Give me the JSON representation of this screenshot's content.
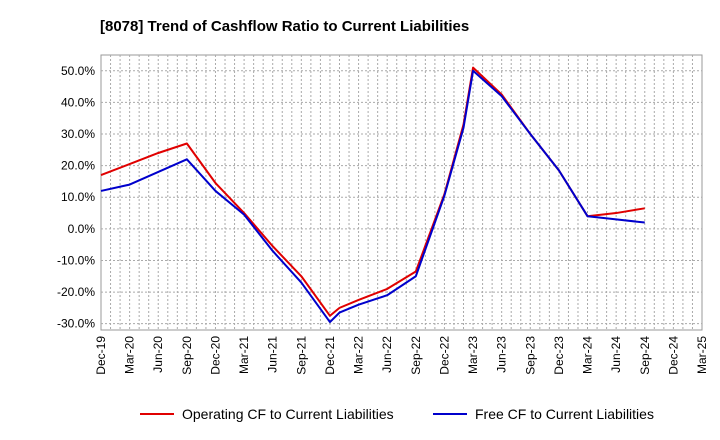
{
  "chart_data": {
    "type": "line",
    "title": "[8078]  Trend of Cashflow Ratio to Current Liabilities",
    "xlabel": "",
    "ylabel": "",
    "ylim": [
      -32,
      55
    ],
    "y_ticks": [
      "50.0%",
      "40.0%",
      "30.0%",
      "20.0%",
      "10.0%",
      "0.0%",
      "-10.0%",
      "-20.0%",
      "-30.0%"
    ],
    "y_tick_values": [
      50,
      40,
      30,
      20,
      10,
      0,
      -10,
      -20,
      -30
    ],
    "x_ticks": [
      "Dec-19",
      "Mar-20",
      "Jun-20",
      "Sep-20",
      "Dec-20",
      "Mar-21",
      "Jun-21",
      "Sep-21",
      "Dec-21",
      "Mar-22",
      "Jun-22",
      "Sep-22",
      "Dec-22",
      "Mar-23",
      "Jun-23",
      "Sep-23",
      "Dec-23",
      "Mar-24",
      "Jun-24",
      "Sep-24",
      "Dec-24",
      "Mar-25"
    ],
    "grid": true,
    "legend_position": "bottom",
    "series": [
      {
        "name": "Operating CF to Current Liabilities",
        "color": "#e00000",
        "points": [
          [
            "Dec-19",
            17
          ],
          [
            "Mar-20",
            20.5
          ],
          [
            "Jun-20",
            24
          ],
          [
            "Sep-20",
            27
          ],
          [
            "Dec-20",
            14.5
          ],
          [
            "Mar-21",
            5
          ],
          [
            "Jun-21",
            -5.5
          ],
          [
            "Sep-21",
            -15
          ],
          [
            "Dec-21",
            -27.5
          ],
          [
            "Jan-22",
            -25
          ],
          [
            "Mar-22",
            -22.5
          ],
          [
            "Jun-22",
            -19
          ],
          [
            "Sep-22",
            -13.5
          ],
          [
            "Dec-22",
            11
          ],
          [
            "Feb-23",
            33
          ],
          [
            "Mar-23",
            51
          ],
          [
            "Jun-23",
            42.5
          ],
          [
            "Sep-23",
            30
          ],
          [
            "Dec-23",
            18.5
          ],
          [
            "Mar-24",
            4
          ],
          [
            "Jun-24",
            5
          ],
          [
            "Sep-24",
            6.5
          ]
        ]
      },
      {
        "name": "Free CF to Current Liabilities",
        "color": "#0000cc",
        "points": [
          [
            "Dec-19",
            12
          ],
          [
            "Mar-20",
            14
          ],
          [
            "Jun-20",
            18
          ],
          [
            "Sep-20",
            22
          ],
          [
            "Dec-20",
            12
          ],
          [
            "Mar-21",
            4.5
          ],
          [
            "Jun-21",
            -7
          ],
          [
            "Sep-21",
            -17
          ],
          [
            "Dec-21",
            -29.5
          ],
          [
            "Jan-22",
            -26.5
          ],
          [
            "Mar-22",
            -24
          ],
          [
            "Jun-22",
            -21
          ],
          [
            "Sep-22",
            -15
          ],
          [
            "Dec-22",
            10.5
          ],
          [
            "Feb-23",
            32
          ],
          [
            "Mar-23",
            50
          ],
          [
            "Jun-23",
            42
          ],
          [
            "Sep-23",
            30
          ],
          [
            "Dec-23",
            18.5
          ],
          [
            "Mar-24",
            4
          ],
          [
            "Jun-24",
            3
          ],
          [
            "Sep-24",
            2
          ]
        ]
      }
    ]
  }
}
